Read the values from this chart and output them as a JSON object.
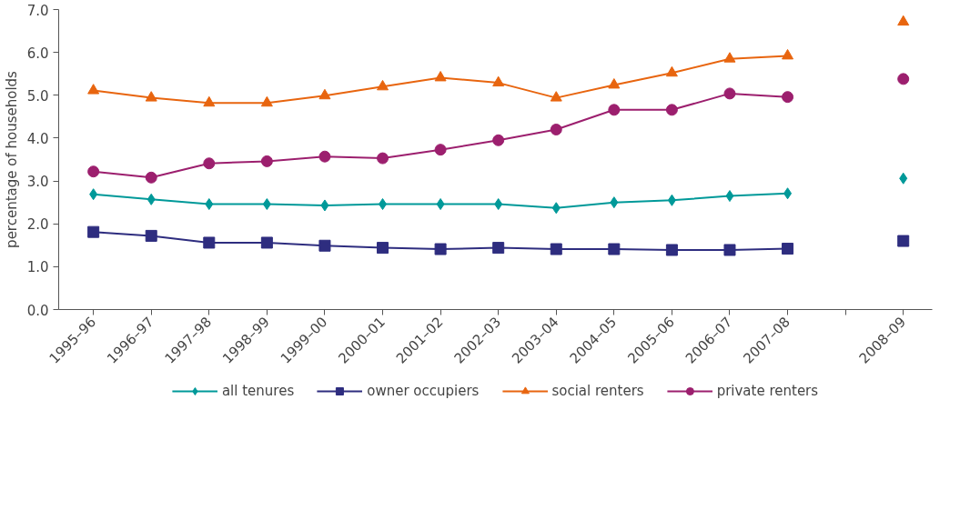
{
  "chart_data": {
    "type": "line",
    "ylabel": "percentage of households",
    "categories": [
      "1995–96",
      "1996–97",
      "1997–98",
      "1998–99",
      "1999–00",
      "2000–01",
      "2001–02",
      "2002–03",
      "2003–04",
      "2004–05",
      "2005–06",
      "2006–07",
      "2007–08",
      null,
      "2008–09"
    ],
    "ylim": [
      0,
      7
    ],
    "yticks": [
      {
        "value": 0,
        "label": "0.0"
      },
      {
        "value": 1,
        "label": "1.0"
      },
      {
        "value": 2,
        "label": "2.0"
      },
      {
        "value": 3,
        "label": "3.0"
      },
      {
        "value": 4,
        "label": "4.0"
      },
      {
        "value": 5,
        "label": "5.0"
      },
      {
        "value": 6,
        "label": "6.0"
      },
      {
        "value": 7,
        "label": "7.0"
      }
    ],
    "grid": false,
    "legend": "bottom",
    "series": [
      {
        "name": "all tenures",
        "color": "#009999",
        "marker": "diamond",
        "values": [
          2.69,
          2.57,
          2.46,
          2.46,
          2.43,
          2.46,
          2.46,
          2.46,
          2.37,
          2.5,
          2.55,
          2.65,
          2.71,
          null,
          3.06
        ]
      },
      {
        "name": "owner occupiers",
        "color": "#2e2d7f",
        "marker": "square",
        "values": [
          1.81,
          1.72,
          1.56,
          1.56,
          1.49,
          1.44,
          1.41,
          1.44,
          1.41,
          1.41,
          1.39,
          1.39,
          1.42,
          null,
          1.6
        ]
      },
      {
        "name": "social renters",
        "color": "#e8650f",
        "marker": "triangle",
        "values": [
          5.11,
          4.94,
          4.82,
          4.82,
          4.99,
          5.2,
          5.41,
          5.29,
          4.94,
          5.24,
          5.52,
          5.85,
          5.92,
          null,
          6.71
        ]
      },
      {
        "name": "private renters",
        "color": "#9c1f6e",
        "marker": "circle",
        "values": [
          3.22,
          3.08,
          3.41,
          3.46,
          3.57,
          3.53,
          3.73,
          3.95,
          4.2,
          4.66,
          4.66,
          5.04,
          4.96,
          null,
          5.38
        ]
      }
    ]
  }
}
